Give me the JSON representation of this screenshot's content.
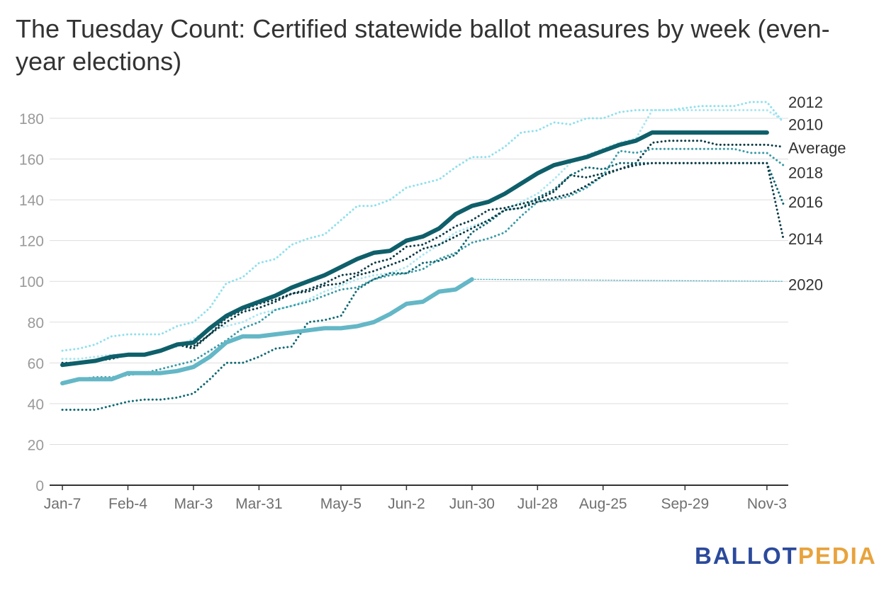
{
  "chart_data": {
    "type": "line",
    "title": "The Tuesday Count: Certified statewide ballot measures by week (even-year elections)",
    "xlabel": "",
    "ylabel": "",
    "ylim": [
      0,
      180
    ],
    "yticks": [
      0,
      20,
      40,
      60,
      80,
      100,
      120,
      140,
      160,
      180
    ],
    "grid": true,
    "legend": "direct labels at right end of lines",
    "x_tick_labels": [
      "Jan-7",
      "Feb-4",
      "Mar-3",
      "Mar-31",
      "May-5",
      "Jun-2",
      "Jun-30",
      "Jul-28",
      "Aug-25",
      "Sep-29",
      "Nov-3"
    ],
    "x_tick_weeks": [
      0,
      4,
      8,
      12,
      17,
      21,
      25,
      29,
      33,
      38,
      43
    ],
    "x_weeks_total": 44,
    "series": [
      {
        "name": "2012",
        "color": "#8fe0ec",
        "style": "dotted",
        "weeks": [
          0,
          1,
          2,
          3,
          4,
          5,
          6,
          7,
          8,
          9,
          10,
          11,
          12,
          13,
          14,
          15,
          16,
          17,
          18,
          19,
          20,
          21,
          22,
          23,
          24,
          25,
          26,
          27,
          28,
          29,
          30,
          31,
          32,
          33,
          34,
          35,
          36,
          37,
          38,
          39,
          40,
          41,
          42,
          43,
          44
        ],
        "values": [
          66,
          67,
          69,
          73,
          74,
          74,
          74,
          78,
          80,
          87,
          99,
          102,
          109,
          111,
          118,
          121,
          123,
          130,
          137,
          137,
          140,
          146,
          148,
          150,
          156,
          161,
          161,
          166,
          173,
          174,
          178,
          177,
          180,
          180,
          183,
          184,
          184,
          184,
          185,
          186,
          186,
          186,
          188,
          188,
          178
        ]
      },
      {
        "name": "2010",
        "color": "#a8e6f0",
        "style": "dotted",
        "weeks": [
          0,
          1,
          2,
          3,
          4,
          5,
          6,
          7,
          8,
          9,
          10,
          11,
          12,
          13,
          14,
          15,
          16,
          17,
          18,
          19,
          20,
          21,
          22,
          23,
          24,
          25,
          26,
          27,
          28,
          29,
          30,
          31,
          32,
          33,
          34,
          35,
          36,
          37,
          38,
          39,
          40,
          41,
          42,
          43,
          44
        ],
        "values": [
          62,
          62,
          63,
          64,
          64,
          64,
          66,
          68,
          72,
          76,
          78,
          80,
          84,
          86,
          88,
          91,
          95,
          98,
          101,
          103,
          104,
          107,
          113,
          118,
          124,
          127,
          130,
          135,
          139,
          143,
          150,
          158,
          162,
          165,
          168,
          170,
          184,
          184,
          184,
          184,
          184,
          184,
          184,
          184,
          179
        ]
      },
      {
        "name": "Average",
        "color": "#0a3a44",
        "style": "dotted",
        "weeks": [
          0,
          1,
          2,
          3,
          4,
          5,
          6,
          7,
          8,
          9,
          10,
          11,
          12,
          13,
          14,
          15,
          16,
          17,
          18,
          19,
          20,
          21,
          22,
          23,
          24,
          25,
          26,
          27,
          28,
          29,
          30,
          31,
          32,
          33,
          34,
          35,
          36,
          37,
          38,
          39,
          40,
          41,
          42,
          43,
          44
        ],
        "values": [
          60,
          60,
          61,
          62,
          64,
          64,
          66,
          69,
          68,
          74,
          82,
          86,
          89,
          91,
          94,
          96,
          99,
          103,
          104,
          109,
          111,
          117,
          118,
          122,
          127,
          130,
          135,
          136,
          138,
          140,
          144,
          152,
          151,
          153,
          155,
          158,
          168,
          169,
          169,
          169,
          167,
          167,
          167,
          167,
          166
        ]
      },
      {
        "name": "2018",
        "color": "#3a9aa6",
        "style": "dotted",
        "weeks": [
          0,
          1,
          2,
          3,
          4,
          5,
          6,
          7,
          8,
          9,
          10,
          11,
          12,
          13,
          14,
          15,
          16,
          17,
          18,
          19,
          20,
          21,
          22,
          23,
          24,
          25,
          26,
          27,
          28,
          29,
          30,
          31,
          32,
          33,
          34,
          35,
          36,
          37,
          38,
          39,
          40,
          41,
          42,
          43,
          44
        ],
        "values": [
          50,
          52,
          53,
          53,
          54,
          55,
          57,
          59,
          61,
          66,
          71,
          77,
          80,
          86,
          88,
          90,
          93,
          96,
          97,
          101,
          103,
          104,
          106,
          111,
          114,
          119,
          121,
          124,
          132,
          139,
          140,
          142,
          146,
          152,
          164,
          163,
          165,
          165,
          165,
          165,
          165,
          165,
          163,
          163,
          157
        ]
      },
      {
        "name": "2016",
        "color": "#0e6872",
        "style": "dotted",
        "weeks": [
          0,
          1,
          2,
          3,
          4,
          5,
          6,
          7,
          8,
          9,
          10,
          11,
          12,
          13,
          14,
          15,
          16,
          17,
          18,
          19,
          20,
          21,
          22,
          23,
          24,
          25,
          26,
          27,
          28,
          29,
          30,
          31,
          32,
          33,
          34,
          35,
          36,
          37,
          38,
          39,
          40,
          41,
          42,
          43,
          44
        ],
        "values": [
          37,
          37,
          37,
          39,
          41,
          42,
          42,
          43,
          45,
          52,
          60,
          60,
          63,
          67,
          68,
          80,
          81,
          83,
          96,
          101,
          104,
          104,
          109,
          110,
          113,
          124,
          129,
          135,
          136,
          141,
          145,
          152,
          156,
          155,
          158,
          158,
          158,
          158,
          158,
          158,
          158,
          158,
          158,
          158,
          138
        ]
      },
      {
        "name": "2014",
        "color": "#0a3a44",
        "style": "dotted",
        "weeks": [
          0,
          1,
          2,
          3,
          4,
          5,
          6,
          7,
          8,
          9,
          10,
          11,
          12,
          13,
          14,
          15,
          16,
          17,
          18,
          19,
          20,
          21,
          22,
          23,
          24,
          25,
          26,
          27,
          28,
          29,
          30,
          31,
          32,
          33,
          34,
          35,
          36,
          37,
          38,
          39,
          40,
          41,
          42,
          43,
          44
        ],
        "values": [
          59,
          60,
          61,
          62,
          64,
          64,
          66,
          69,
          67,
          74,
          80,
          85,
          87,
          90,
          94,
          95,
          98,
          99,
          103,
          105,
          108,
          111,
          116,
          118,
          122,
          126,
          130,
          135,
          136,
          139,
          141,
          143,
          147,
          152,
          155,
          157,
          158,
          158,
          158,
          158,
          158,
          158,
          158,
          158,
          121
        ]
      },
      {
        "name": "2020",
        "color": "#64b7c6",
        "style": "thin-dotted",
        "weeks": [
          25,
          44
        ],
        "values": [
          101,
          100
        ]
      },
      {
        "name": "",
        "color": "#64b7c6",
        "style": "thick",
        "weeks": [
          0,
          1,
          2,
          3,
          4,
          5,
          6,
          7,
          8,
          9,
          10,
          11,
          12,
          13,
          14,
          15,
          16,
          17,
          18,
          19,
          20,
          21,
          22,
          23,
          24,
          25
        ],
        "values": [
          50,
          52,
          52,
          52,
          55,
          55,
          55,
          56,
          58,
          63,
          70,
          73,
          73,
          74,
          75,
          76,
          77,
          77,
          78,
          80,
          84,
          89,
          90,
          95,
          96,
          101
        ]
      },
      {
        "name": "",
        "color": "#0e5f6a",
        "style": "thick",
        "weeks": [
          0,
          1,
          2,
          3,
          4,
          5,
          6,
          7,
          8,
          9,
          10,
          11,
          12,
          13,
          14,
          15,
          16,
          17,
          18,
          19,
          20,
          21,
          22,
          23,
          24,
          25,
          26,
          27,
          28,
          29,
          30,
          31,
          32,
          33,
          34,
          35,
          36,
          37,
          38,
          39,
          40,
          41,
          42,
          43
        ],
        "values": [
          59,
          60,
          61,
          63,
          64,
          64,
          66,
          69,
          70,
          77,
          83,
          87,
          90,
          93,
          97,
          100,
          103,
          107,
          111,
          114,
          115,
          120,
          122,
          126,
          133,
          137,
          139,
          143,
          148,
          153,
          157,
          159,
          161,
          164,
          167,
          169,
          173,
          173,
          173,
          173,
          173,
          173,
          173,
          173
        ]
      }
    ],
    "end_labels": [
      {
        "text": "2012",
        "y": 188
      },
      {
        "text": "2010",
        "y": 177
      },
      {
        "text": "Average",
        "y": 165.5
      },
      {
        "text": "2018",
        "y": 153.5
      },
      {
        "text": "2016",
        "y": 139
      },
      {
        "text": "2014",
        "y": 121
      },
      {
        "text": "2020",
        "y": 98.5
      }
    ]
  },
  "logo": {
    "part_a": "BALLOT",
    "part_b": "PEDIA"
  }
}
